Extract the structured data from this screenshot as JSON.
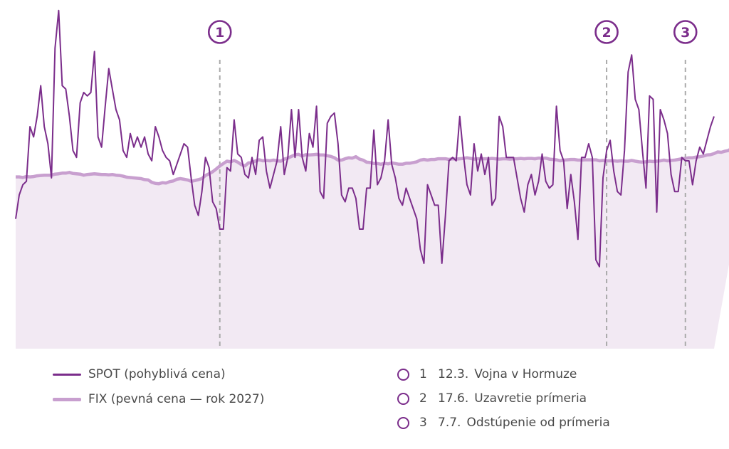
{
  "chart_data": {
    "type": "area",
    "colors": {
      "spot": "#7b2d8b",
      "fix": "#c89fcf",
      "area": "#f2e9f3",
      "marker": "#aaaaaa"
    },
    "ylim": [
      0,
      100
    ],
    "series": [
      {
        "name": "SPOT (pohyblivá cena)",
        "values": [
          38,
          45,
          48,
          49,
          65,
          62,
          68,
          77,
          65,
          60,
          50,
          88,
          99,
          77,
          76,
          68,
          58,
          56,
          72,
          75,
          74,
          75,
          87,
          62,
          59,
          71,
          82,
          76,
          70,
          67,
          58,
          56,
          63,
          59,
          62,
          59,
          62,
          57,
          55,
          65,
          62,
          58,
          56,
          55,
          51,
          54,
          57,
          60,
          59,
          50,
          42,
          39,
          46,
          56,
          53,
          43,
          41,
          35,
          35,
          53,
          52,
          67,
          57,
          56,
          51,
          50,
          56,
          51,
          61,
          62,
          52,
          47,
          51,
          55,
          65,
          51,
          56,
          70,
          56,
          70,
          56,
          52,
          63,
          59,
          71,
          46,
          44,
          66,
          68,
          69,
          60,
          45,
          43,
          47,
          47,
          44,
          35,
          35,
          47,
          47,
          64,
          48,
          50,
          55,
          67,
          54,
          50,
          44,
          42,
          47,
          44,
          41,
          38,
          29,
          25,
          48,
          45,
          42,
          42,
          25,
          39,
          55,
          56,
          55,
          68,
          57,
          48,
          45,
          60,
          52,
          57,
          51,
          56,
          42,
          44,
          68,
          65,
          56,
          56,
          56,
          50,
          44,
          40,
          48,
          51,
          45,
          49,
          57,
          49,
          47,
          48,
          71,
          58,
          55,
          41,
          51,
          43,
          32,
          56,
          56,
          60,
          56,
          26,
          24,
          50,
          58,
          61,
          52,
          46,
          45,
          58,
          81,
          86,
          73,
          70,
          58,
          47,
          74,
          73,
          40,
          70,
          67,
          63,
          51,
          46,
          46,
          56,
          55,
          55,
          48,
          55,
          59,
          57,
          61,
          65,
          68
        ]
      },
      {
        "name": "FIX (pevná cena — rok 2027)",
        "values": [
          50.3,
          50.3,
          50.1,
          50.4,
          50.3,
          50.4,
          50.6,
          50.7,
          50.8,
          50.8,
          50.8,
          51.1,
          51.2,
          51.4,
          51.4,
          51.6,
          51.3,
          51.2,
          51.1,
          50.8,
          51.0,
          51.1,
          51.2,
          51.1,
          51.0,
          51.0,
          50.9,
          51.0,
          50.8,
          50.7,
          50.5,
          50.2,
          50.1,
          50.0,
          49.9,
          49.8,
          49.5,
          49.4,
          48.7,
          48.4,
          48.3,
          48.6,
          48.5,
          48.9,
          49.1,
          49.6,
          49.8,
          49.6,
          49.4,
          49.0,
          49.2,
          49.5,
          49.8,
          50.7,
          51.2,
          51.8,
          52.6,
          53.5,
          54.2,
          54.9,
          54.7,
          55.1,
          54.6,
          53.9,
          53.5,
          54.4,
          54.4,
          55.0,
          55.3,
          55.0,
          55.1,
          55.0,
          55.2,
          55.0,
          54.9,
          55.5,
          55.8,
          56.3,
          56.8,
          56.9,
          56.4,
          56.8,
          56.7,
          56.8,
          56.9,
          56.7,
          56.7,
          56.5,
          56.3,
          55.9,
          55.2,
          55.2,
          55.6,
          55.9,
          55.8,
          56.2,
          55.5,
          55.2,
          54.6,
          54.5,
          54.2,
          54.2,
          54.0,
          54.3,
          54.1,
          54.4,
          54.2,
          54.0,
          54.0,
          54.3,
          54.3,
          54.5,
          54.7,
          55.2,
          55.4,
          55.2,
          55.4,
          55.4,
          55.6,
          55.6,
          55.6,
          55.4,
          55.6,
          55.5,
          55.6,
          55.7,
          55.9,
          55.7,
          55.5,
          55.6,
          55.6,
          55.6,
          55.6,
          55.7,
          55.6,
          55.5,
          55.6,
          55.6,
          55.5,
          55.6,
          55.6,
          55.7,
          55.6,
          55.7,
          55.7,
          55.6,
          55.8,
          55.8,
          55.8,
          55.5,
          55.4,
          55.3,
          55.0,
          55.2,
          55.3,
          55.4,
          55.4,
          55.2,
          55.2,
          55.3,
          55.3,
          55.3,
          55.3,
          55.0,
          55.1,
          55.0,
          55.0,
          55.0,
          54.9,
          55.0,
          54.9,
          54.9,
          55.1,
          54.9,
          54.7,
          54.6,
          54.7,
          54.9,
          54.8,
          54.9,
          55.0,
          55.2,
          55.0,
          55.1,
          55.2,
          55.4,
          55.6,
          55.7,
          55.9,
          55.9,
          56.1,
          56.2,
          56.4,
          56.7,
          56.8,
          57.1,
          57.6,
          57.5,
          57.8,
          58.0,
          58.7,
          58.9,
          58.9,
          59.0,
          58.9,
          59.1
        ]
      }
    ],
    "events": [
      {
        "num": "1",
        "date": "12.3.",
        "label": "Vojna v Hormuze",
        "index": 57
      },
      {
        "num": "2",
        "date": "17.6.",
        "label": "Uzavretie prímeria",
        "index": 165
      },
      {
        "num": "3",
        "date": "7.7.",
        "label": "Odstúpenie od prímeria",
        "index": 187
      }
    ]
  }
}
